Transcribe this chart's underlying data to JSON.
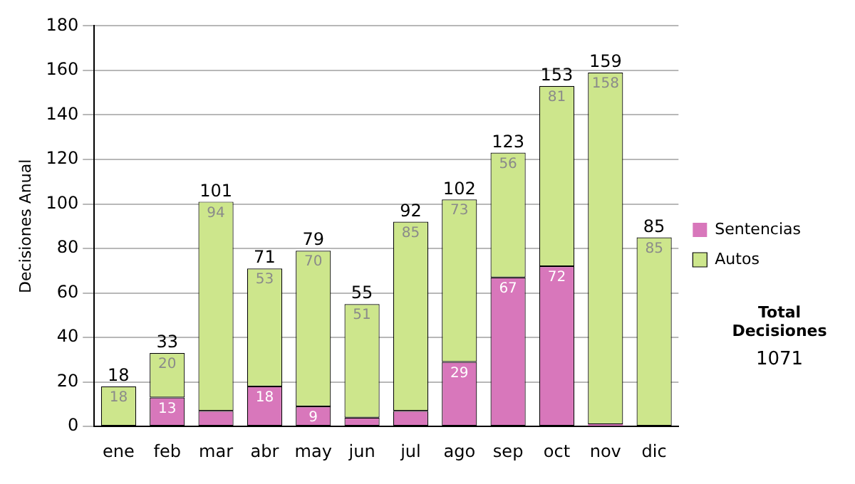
{
  "chart_data": {
    "type": "bar",
    "stacked": true,
    "ylabel": "Decisiones Anual",
    "categories": [
      "ene",
      "feb",
      "mar",
      "abr",
      "may",
      "jun",
      "jul",
      "ago",
      "sep",
      "oct",
      "nov",
      "dic"
    ],
    "series": [
      {
        "name": "Sentencias",
        "color": "#d877bb",
        "values": [
          0,
          13,
          7,
          18,
          9,
          4,
          7,
          29,
          67,
          72,
          1,
          0
        ],
        "value_labels": [
          null,
          "13",
          null,
          "18",
          "9",
          null,
          null,
          "29",
          "67",
          "72",
          null,
          null
        ]
      },
      {
        "name": "Autos",
        "color": "#cde68c",
        "values": [
          18,
          20,
          94,
          53,
          70,
          51,
          85,
          73,
          56,
          81,
          158,
          85
        ],
        "value_labels": [
          "18",
          "20",
          "94",
          "53",
          "70",
          "51",
          "85",
          "73",
          "56",
          "81",
          "158",
          "85"
        ]
      }
    ],
    "totals": [
      "18",
      "33",
      "101",
      "71",
      "79",
      "55",
      "92",
      "102",
      "123",
      "153",
      "159",
      "85"
    ],
    "ylim": [
      0,
      180
    ],
    "yticks": [
      0,
      20,
      40,
      60,
      80,
      100,
      120,
      140,
      160,
      180
    ],
    "grid": "y",
    "legend": "right",
    "annotations": [
      "Total Decisiones",
      "1071"
    ]
  }
}
